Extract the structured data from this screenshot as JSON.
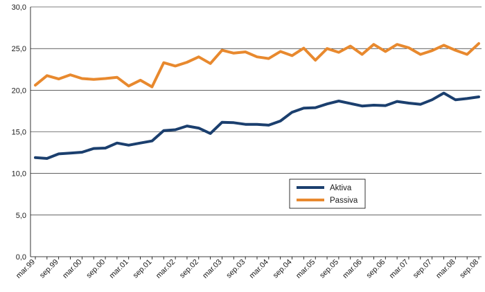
{
  "chart_data": {
    "type": "line",
    "title": "",
    "xlabel": "",
    "ylabel": "",
    "ylim": [
      0,
      30
    ],
    "yticks": [
      "0,0",
      "5,0",
      "10,0",
      "15,0",
      "20,0",
      "25,0",
      "30,0"
    ],
    "grid": "horizontal",
    "legend_position": "center-right",
    "x_tick_labels": [
      "mar.99",
      "sep.99",
      "mar.00",
      "sep.00",
      "mar.01",
      "sep.01",
      "mar.02",
      "sep.02",
      "mar.03",
      "sep.03",
      "mar.04",
      "sep.04",
      "mar.05",
      "sep.05",
      "mar.06",
      "sep.06",
      "mar.07",
      "sep.07",
      "mar.08",
      "sep.08"
    ],
    "x": [
      "mar.99",
      "jun.99",
      "sep.99",
      "dec.99",
      "mar.00",
      "jun.00",
      "sep.00",
      "dec.00",
      "mar.01",
      "jun.01",
      "sep.01",
      "dec.01",
      "mar.02",
      "jun.02",
      "sep.02",
      "dec.02",
      "mar.03",
      "jun.03",
      "sep.03",
      "dec.03",
      "mar.04",
      "jun.04",
      "sep.04",
      "dec.04",
      "mar.05",
      "jun.05",
      "sep.05",
      "dec.05",
      "mar.06",
      "jun.06",
      "sep.06",
      "dec.06",
      "mar.07",
      "jun.07",
      "sep.07",
      "dec.07",
      "mar.08",
      "jun.08",
      "sep.08"
    ],
    "series": [
      {
        "name": "Aktiva",
        "color": "#1b3f6e",
        "values": [
          11.9,
          11.8,
          12.35,
          12.45,
          12.55,
          13.0,
          13.05,
          13.65,
          13.4,
          13.65,
          13.9,
          15.15,
          15.25,
          15.7,
          15.45,
          14.8,
          16.15,
          16.1,
          15.9,
          15.9,
          15.8,
          16.3,
          17.35,
          17.85,
          17.9,
          18.35,
          18.7,
          18.4,
          18.1,
          18.2,
          18.15,
          18.65,
          18.45,
          18.3,
          18.85,
          19.65,
          18.85,
          19.0,
          19.2
        ]
      },
      {
        "name": "Passiva",
        "color": "#e8892e",
        "values": [
          20.6,
          21.75,
          21.35,
          21.85,
          21.4,
          21.3,
          21.4,
          21.55,
          20.5,
          21.2,
          20.4,
          23.3,
          22.9,
          23.35,
          24.0,
          23.2,
          24.8,
          24.45,
          24.6,
          24.0,
          23.8,
          24.65,
          24.15,
          25.05,
          23.6,
          25.0,
          24.55,
          25.3,
          24.3,
          25.5,
          24.65,
          25.5,
          25.1,
          24.3,
          24.75,
          25.4,
          24.8,
          24.3,
          25.6
        ]
      }
    ]
  }
}
